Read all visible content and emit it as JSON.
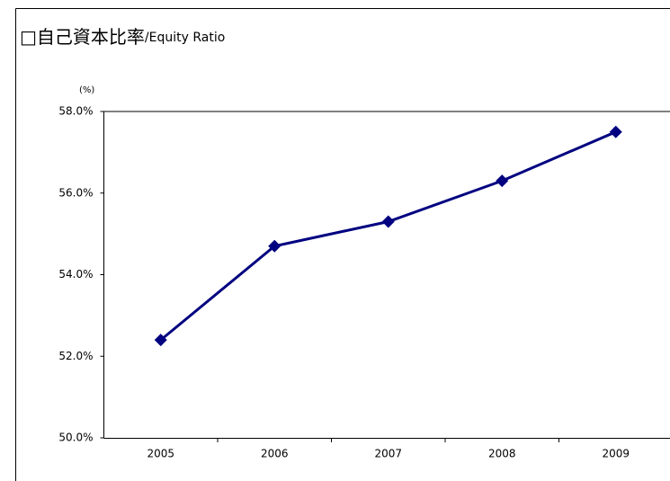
{
  "chart_data": {
    "type": "line",
    "title": "□自己資本比率",
    "subtitle": "/Equity Ratio",
    "y_label": "(%)",
    "categories": [
      "2005",
      "2006",
      "2007",
      "2008",
      "2009"
    ],
    "series": [
      {
        "name": "Equity Ratio",
        "color": "#000080",
        "values": [
          52.4,
          54.7,
          55.3,
          56.3,
          57.5
        ]
      }
    ],
    "ylim": [
      50,
      58
    ],
    "yticks": [
      {
        "value": 50,
        "label": "50.0%"
      },
      {
        "value": 52,
        "label": "52.0%"
      },
      {
        "value": 54,
        "label": "54.0%"
      },
      {
        "value": 56,
        "label": "56.0%"
      },
      {
        "value": 58,
        "label": "58.0%"
      }
    ],
    "grid": false,
    "legend": false
  }
}
